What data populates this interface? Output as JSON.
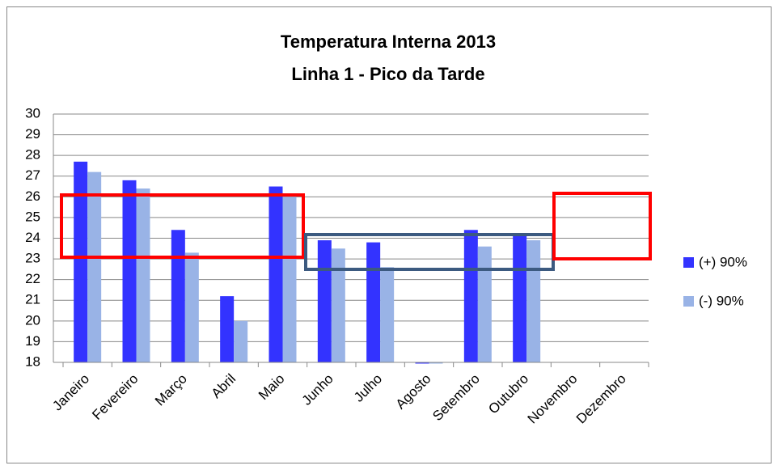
{
  "chart_data": {
    "type": "bar",
    "title": "Temperatura Interna 2013",
    "subtitle": "Linha 1 - Pico da Tarde",
    "categories": [
      "Janeiro",
      "Fevereiro",
      "Março",
      "Abril",
      "Maio",
      "Junho",
      "Julho",
      "Agosto",
      "Setembro",
      "Outubro",
      "Novembro",
      "Dezembro"
    ],
    "series": [
      {
        "name": "(+) 90%",
        "color": "#3333ff",
        "values": [
          27.7,
          26.8,
          24.4,
          21.2,
          26.5,
          23.9,
          23.8,
          18,
          24.4,
          24.2,
          null,
          null
        ]
      },
      {
        "name": "(-) 90%",
        "color": "#99b3e6",
        "values": [
          27.2,
          26.4,
          23.3,
          20.0,
          26.0,
          23.5,
          22.6,
          18,
          23.6,
          23.9,
          null,
          null
        ]
      }
    ],
    "ylim": [
      18,
      30
    ],
    "yticks": [
      18,
      19,
      20,
      21,
      22,
      23,
      24,
      25,
      26,
      27,
      28,
      29,
      30
    ],
    "grid": true,
    "legend": "right"
  }
}
